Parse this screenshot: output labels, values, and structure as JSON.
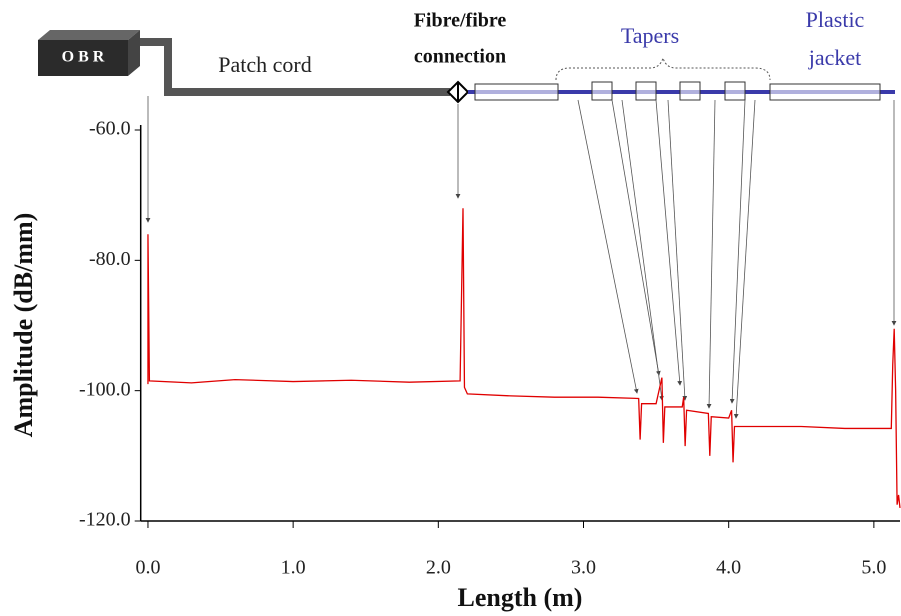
{
  "chart_data": {
    "type": "line",
    "xlabel": "Length (m)",
    "ylabel": "Amplitude (dB/mm)",
    "annotations": [
      "O B R",
      "Patch cord",
      "Fibre/fibre",
      "connection",
      "Tapers",
      "Plastic",
      "jacket"
    ],
    "series": [
      {
        "color": "#e00000",
        "x": [
          0.0,
          0.0,
          0.01,
          0.3,
          0.6,
          1.0,
          1.4,
          1.8,
          2.15,
          2.17,
          2.18,
          2.2,
          2.5,
          2.8,
          3.1,
          3.38,
          3.39,
          3.4,
          3.5,
          3.54,
          3.55,
          3.56,
          3.68,
          3.69,
          3.7,
          3.71,
          3.86,
          3.87,
          3.88,
          4.0,
          4.02,
          4.03,
          4.04,
          4.5,
          4.8,
          5.12,
          5.13,
          5.14,
          5.15,
          5.16,
          5.17,
          5.18
        ],
        "values": [
          -99,
          -76,
          -98.5,
          -98.8,
          -98.3,
          -98.6,
          -98.4,
          -98.7,
          -98.5,
          -72,
          -99.5,
          -100.5,
          -100.8,
          -101,
          -101,
          -101.2,
          -107.5,
          -102,
          -102,
          -98,
          -108,
          -102.5,
          -102.5,
          -101,
          -108.5,
          -103,
          -103.5,
          -110,
          -104,
          -104.2,
          -103,
          -111,
          -105.5,
          -105.5,
          -105.8,
          -105.8,
          -96,
          -90.5,
          -100,
          -117.5,
          -116,
          -118
        ]
      }
    ],
    "xlim": [
      -0.05,
      5.18
    ],
    "ylim": [
      -120,
      -60
    ],
    "xticks": [
      {
        "value": 0,
        "label": "0.0"
      },
      {
        "value": 1,
        "label": "1.0"
      },
      {
        "value": 2,
        "label": "2.0"
      },
      {
        "value": 3,
        "label": "3.0"
      },
      {
        "value": 4,
        "label": "4.0"
      },
      {
        "value": 5,
        "label": "5.0"
      }
    ],
    "yticks": [
      {
        "value": -60,
        "label": "-60.0"
      },
      {
        "value": -80,
        "label": "-80.0"
      },
      {
        "value": -100,
        "label": "-100.0"
      },
      {
        "value": -120,
        "label": "-120.0"
      }
    ]
  }
}
